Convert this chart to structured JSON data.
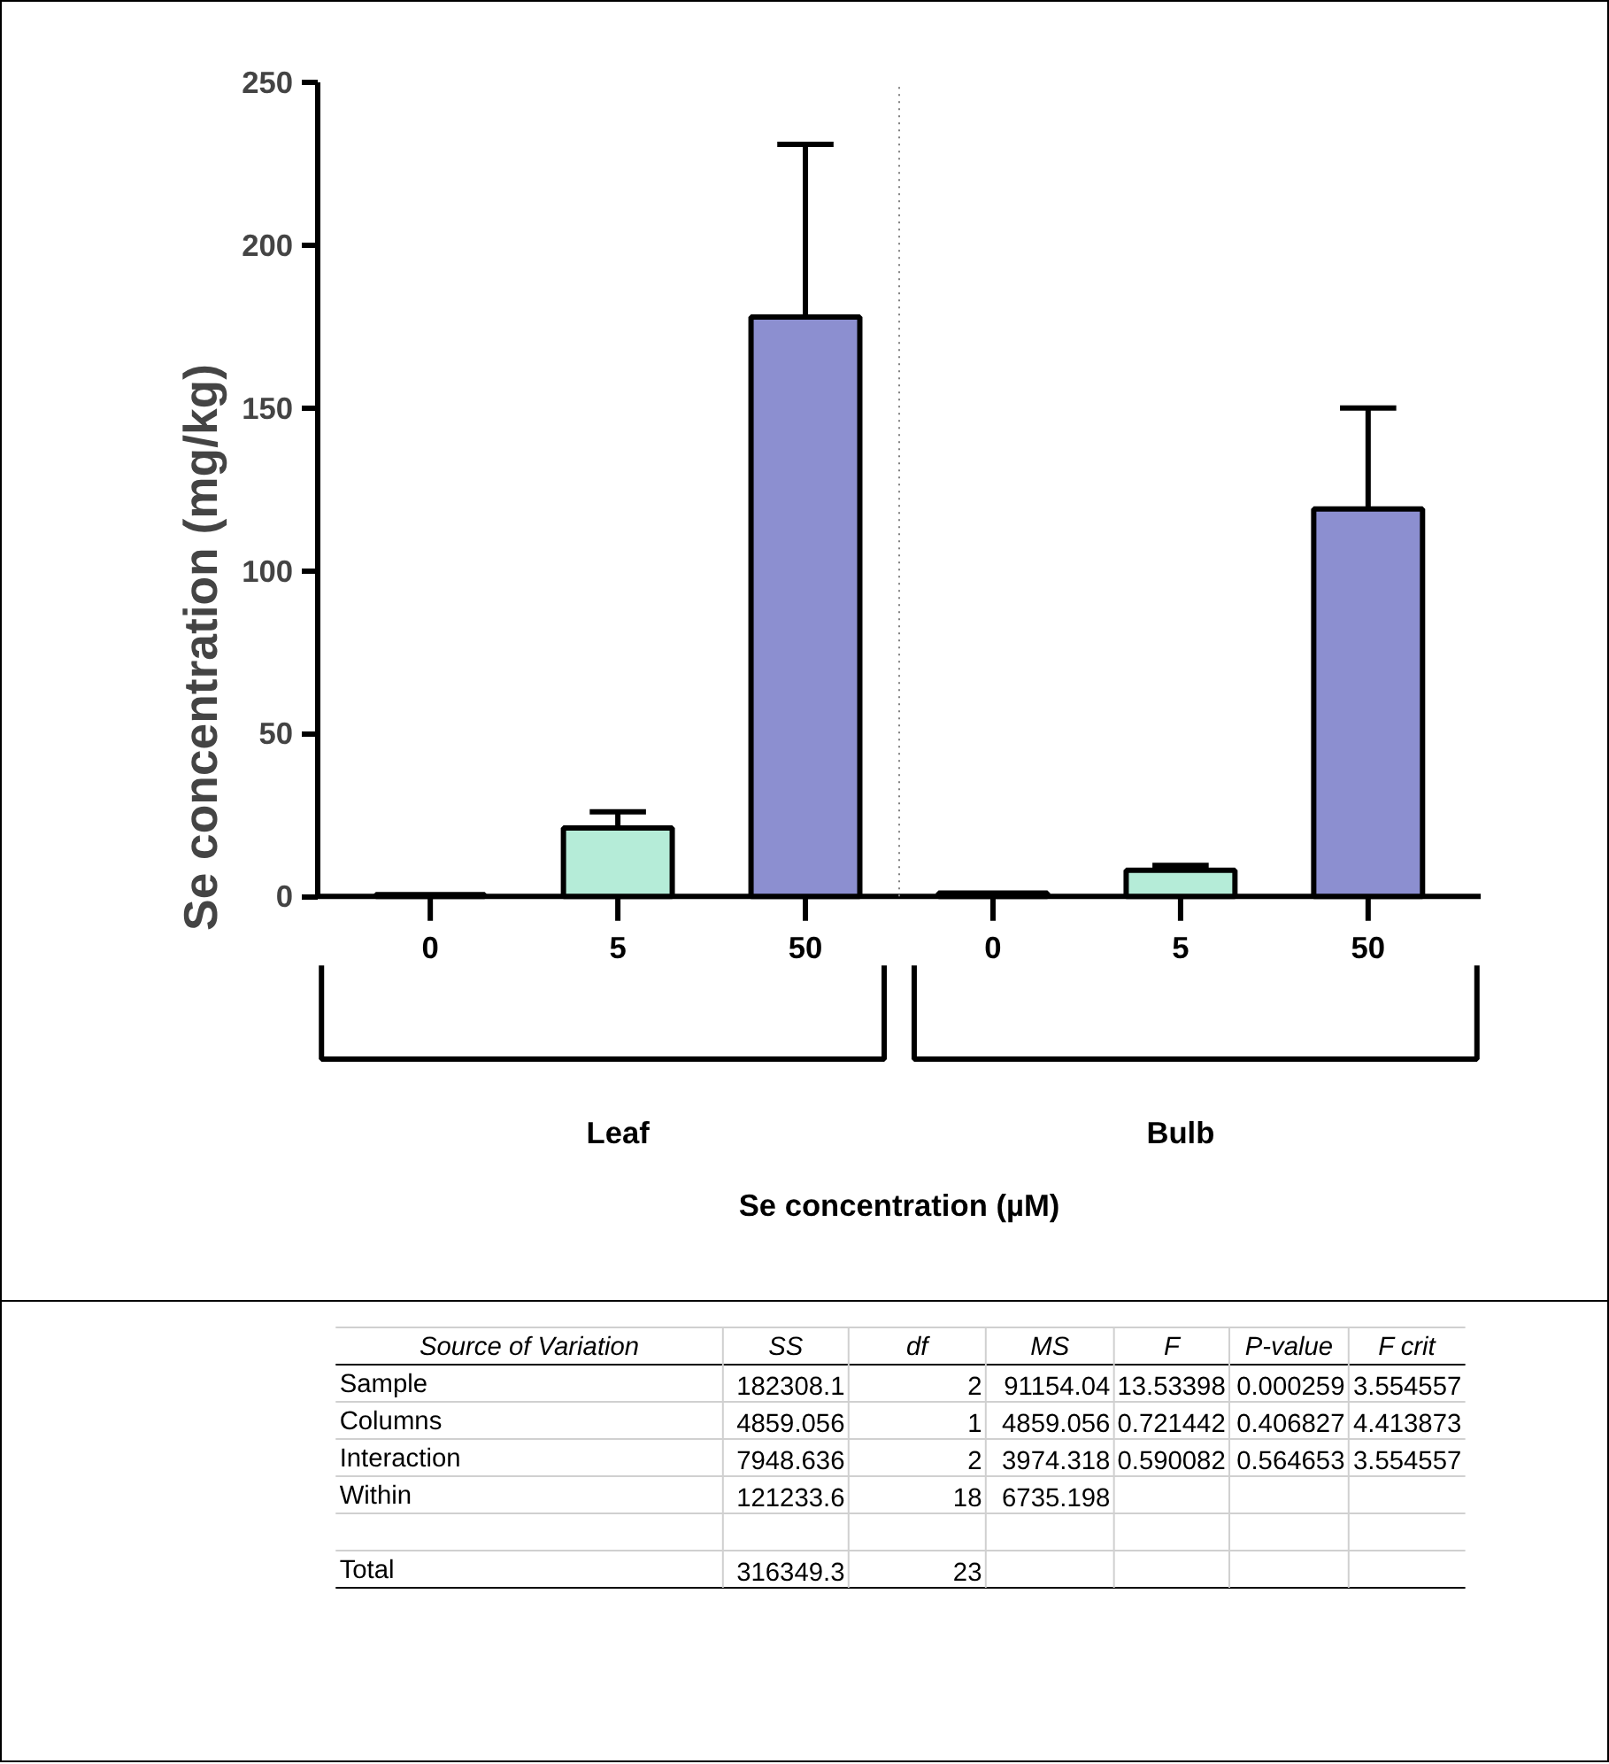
{
  "chart_data": {
    "type": "bar",
    "categories": [
      "0",
      "5",
      "50",
      "0",
      "5",
      "50"
    ],
    "values": [
      0.5,
      21,
      178,
      1,
      8,
      119
    ],
    "errors": [
      null,
      5,
      53,
      null,
      1.5,
      31
    ],
    "colors": [
      "#ffffff",
      "#b5ecd8",
      "#8c8fd0",
      "#ffffff",
      "#b5ecd8",
      "#8c8fd0"
    ],
    "ylabel": "Se concentration (mg/kg)",
    "ylim": [
      0,
      250
    ],
    "yticks": [
      0,
      50,
      100,
      150,
      200,
      250
    ],
    "grid": false,
    "annotations": [
      "Leaf",
      "Bulb",
      "Se concentration (µM)",
      "Source of Variation",
      "SS",
      "df",
      "MS",
      "F",
      "P-value",
      "F crit",
      "Sample",
      "182308.1",
      "2",
      "91154.04",
      "13.53398",
      "0.000259",
      "3.554557",
      "Columns",
      "4859.056",
      "1",
      "4859.056",
      "0.721442",
      "0.406827",
      "4.413873",
      "Interaction",
      "7948.636",
      "2",
      "3974.318",
      "0.590082",
      "0.564653",
      "3.554557",
      "Within",
      "121233.6",
      "18",
      "6735.198",
      "Total",
      "316349.3",
      "23"
    ]
  }
}
